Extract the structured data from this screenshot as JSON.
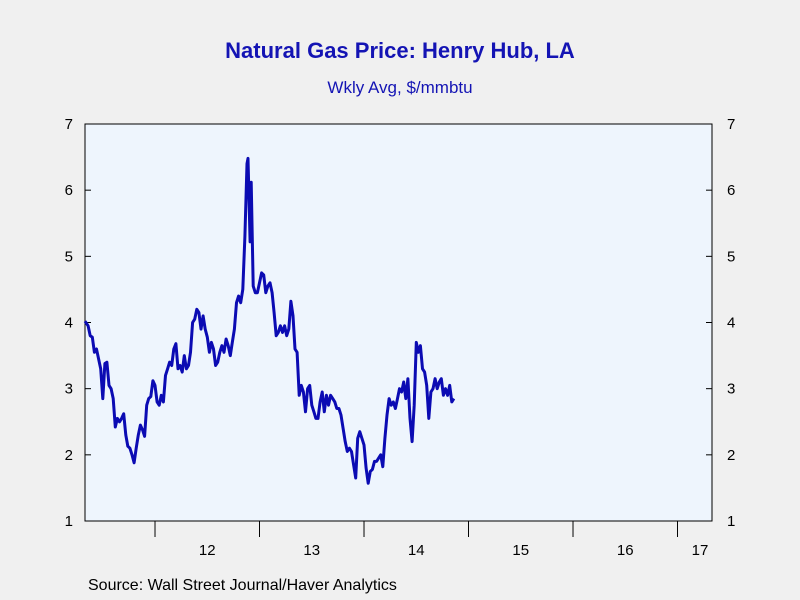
{
  "chart_data": {
    "type": "line",
    "title": "Natural Gas Price: Henry Hub, LA",
    "subtitle": "Wkly Avg, $/mmbtu",
    "xlabel": "",
    "ylabel": "",
    "ylim": [
      1,
      7
    ],
    "xlim": [
      2011.33,
      2017.33
    ],
    "yticks": [
      1,
      2,
      3,
      4,
      5,
      6,
      7
    ],
    "xtick_labels": [
      "12",
      "13",
      "14",
      "15",
      "16",
      "17"
    ],
    "xtick_label_positions": [
      2012.5,
      2013.5,
      2014.5,
      2015.5,
      2016.5,
      2017.5
    ],
    "year_boundaries": [
      2012,
      2013,
      2014,
      2015,
      2016,
      2017
    ],
    "grid": false,
    "legend": "none",
    "line_color": "#0b0bb3",
    "series": [
      {
        "points": [
          [
            2011.33,
            4.02
          ],
          [
            2011.36,
            3.95
          ],
          [
            2011.38,
            3.8
          ],
          [
            2011.4,
            3.78
          ],
          [
            2011.42,
            3.55
          ],
          [
            2011.44,
            3.6
          ],
          [
            2011.46,
            3.45
          ],
          [
            2011.48,
            3.3
          ],
          [
            2011.5,
            2.85
          ],
          [
            2011.52,
            3.38
          ],
          [
            2011.54,
            3.4
          ],
          [
            2011.56,
            3.05
          ],
          [
            2011.58,
            3.0
          ],
          [
            2011.6,
            2.85
          ],
          [
            2011.62,
            2.42
          ],
          [
            2011.64,
            2.55
          ],
          [
            2011.66,
            2.5
          ],
          [
            2011.68,
            2.55
          ],
          [
            2011.7,
            2.62
          ],
          [
            2011.72,
            2.3
          ],
          [
            2011.74,
            2.13
          ],
          [
            2011.76,
            2.1
          ],
          [
            2011.78,
            2.0
          ],
          [
            2011.8,
            1.88
          ],
          [
            2011.82,
            2.1
          ],
          [
            2011.84,
            2.3
          ],
          [
            2011.86,
            2.45
          ],
          [
            2011.88,
            2.38
          ],
          [
            2011.9,
            2.28
          ],
          [
            2011.92,
            2.75
          ],
          [
            2011.94,
            2.85
          ],
          [
            2011.96,
            2.88
          ],
          [
            2011.98,
            3.12
          ],
          [
            2012.0,
            3.05
          ],
          [
            2012.02,
            2.8
          ],
          [
            2012.04,
            2.75
          ],
          [
            2012.06,
            2.9
          ],
          [
            2012.08,
            2.8
          ],
          [
            2012.1,
            3.2
          ],
          [
            2012.12,
            3.3
          ],
          [
            2012.14,
            3.4
          ],
          [
            2012.16,
            3.35
          ],
          [
            2012.18,
            3.6
          ],
          [
            2012.2,
            3.68
          ],
          [
            2012.22,
            3.3
          ],
          [
            2012.24,
            3.35
          ],
          [
            2012.26,
            3.25
          ],
          [
            2012.28,
            3.5
          ],
          [
            2012.3,
            3.3
          ],
          [
            2012.32,
            3.35
          ],
          [
            2012.34,
            3.55
          ],
          [
            2012.36,
            4.0
          ],
          [
            2012.38,
            4.05
          ],
          [
            2012.4,
            4.2
          ],
          [
            2012.42,
            4.15
          ],
          [
            2012.44,
            3.9
          ],
          [
            2012.46,
            4.1
          ],
          [
            2012.48,
            3.9
          ],
          [
            2012.5,
            3.78
          ],
          [
            2012.52,
            3.55
          ],
          [
            2012.54,
            3.7
          ],
          [
            2012.56,
            3.6
          ],
          [
            2012.58,
            3.35
          ],
          [
            2012.6,
            3.4
          ],
          [
            2012.62,
            3.55
          ],
          [
            2012.64,
            3.65
          ],
          [
            2012.66,
            3.55
          ],
          [
            2012.68,
            3.75
          ],
          [
            2012.7,
            3.65
          ],
          [
            2012.72,
            3.5
          ],
          [
            2012.74,
            3.7
          ],
          [
            2012.76,
            3.9
          ],
          [
            2012.78,
            4.3
          ],
          [
            2012.8,
            4.4
          ],
          [
            2012.82,
            4.3
          ],
          [
            2012.84,
            4.5
          ],
          [
            2012.86,
            5.3
          ],
          [
            2012.88,
            6.4
          ],
          [
            2012.89,
            6.48
          ],
          [
            2012.91,
            5.22
          ],
          [
            2012.92,
            6.12
          ],
          [
            2012.94,
            4.55
          ],
          [
            2012.96,
            4.45
          ],
          [
            2012.98,
            4.45
          ],
          [
            2013.0,
            4.6
          ],
          [
            2013.02,
            4.75
          ],
          [
            2013.04,
            4.72
          ],
          [
            2013.06,
            4.45
          ],
          [
            2013.08,
            4.55
          ],
          [
            2013.1,
            4.6
          ],
          [
            2013.12,
            4.45
          ],
          [
            2013.14,
            4.15
          ],
          [
            2013.16,
            3.8
          ],
          [
            2013.18,
            3.85
          ],
          [
            2013.2,
            3.95
          ],
          [
            2013.22,
            3.85
          ],
          [
            2013.24,
            3.95
          ],
          [
            2013.26,
            3.8
          ],
          [
            2013.28,
            3.9
          ],
          [
            2013.3,
            4.32
          ],
          [
            2013.32,
            4.1
          ],
          [
            2013.34,
            3.6
          ],
          [
            2013.36,
            3.55
          ],
          [
            2013.38,
            2.9
          ],
          [
            2013.4,
            3.05
          ],
          [
            2013.42,
            2.95
          ],
          [
            2013.44,
            2.65
          ],
          [
            2013.46,
            3.0
          ],
          [
            2013.48,
            3.05
          ],
          [
            2013.5,
            2.75
          ],
          [
            2013.52,
            2.65
          ],
          [
            2013.54,
            2.55
          ],
          [
            2013.56,
            2.55
          ],
          [
            2013.58,
            2.8
          ],
          [
            2013.6,
            2.95
          ],
          [
            2013.62,
            2.65
          ],
          [
            2013.64,
            2.9
          ],
          [
            2013.66,
            2.75
          ],
          [
            2013.68,
            2.9
          ],
          [
            2013.7,
            2.85
          ],
          [
            2013.72,
            2.8
          ],
          [
            2013.74,
            2.7
          ],
          [
            2013.76,
            2.7
          ],
          [
            2013.78,
            2.6
          ],
          [
            2013.8,
            2.4
          ],
          [
            2013.82,
            2.2
          ],
          [
            2013.84,
            2.05
          ],
          [
            2013.86,
            2.1
          ],
          [
            2013.88,
            2.05
          ],
          [
            2013.9,
            1.85
          ],
          [
            2013.92,
            1.65
          ],
          [
            2013.94,
            2.25
          ],
          [
            2013.96,
            2.35
          ],
          [
            2013.98,
            2.25
          ],
          [
            2014.0,
            2.15
          ],
          [
            2014.02,
            1.8
          ],
          [
            2014.04,
            1.57
          ],
          [
            2014.06,
            1.75
          ],
          [
            2014.08,
            1.78
          ],
          [
            2014.1,
            1.9
          ],
          [
            2014.12,
            1.9
          ],
          [
            2014.14,
            1.95
          ],
          [
            2014.16,
            2.0
          ],
          [
            2014.18,
            1.82
          ],
          [
            2014.2,
            2.25
          ],
          [
            2014.22,
            2.6
          ],
          [
            2014.24,
            2.85
          ],
          [
            2014.26,
            2.75
          ],
          [
            2014.28,
            2.8
          ],
          [
            2014.3,
            2.7
          ],
          [
            2014.32,
            2.85
          ],
          [
            2014.34,
            3.0
          ],
          [
            2014.36,
            2.95
          ],
          [
            2014.38,
            3.1
          ],
          [
            2014.4,
            2.85
          ],
          [
            2014.42,
            3.15
          ],
          [
            2014.44,
            2.55
          ],
          [
            2014.46,
            2.2
          ],
          [
            2014.48,
            2.75
          ],
          [
            2014.5,
            3.7
          ],
          [
            2014.52,
            3.55
          ],
          [
            2014.54,
            3.65
          ],
          [
            2014.56,
            3.3
          ],
          [
            2014.58,
            3.25
          ],
          [
            2014.6,
            3.05
          ],
          [
            2014.62,
            2.55
          ],
          [
            2014.64,
            2.95
          ],
          [
            2014.66,
            3.0
          ],
          [
            2014.68,
            3.15
          ],
          [
            2014.7,
            3.0
          ],
          [
            2014.72,
            3.1
          ],
          [
            2014.74,
            3.15
          ],
          [
            2014.76,
            2.9
          ],
          [
            2014.78,
            3.0
          ],
          [
            2014.8,
            2.9
          ],
          [
            2014.82,
            3.05
          ],
          [
            2014.84,
            2.8
          ],
          [
            2014.86,
            2.85
          ]
        ]
      }
    ]
  },
  "source": "Source:  Wall Street Journal/Haver Analytics"
}
